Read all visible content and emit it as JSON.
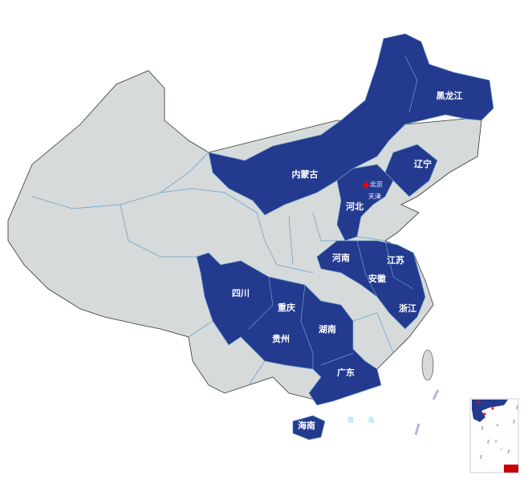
{
  "colors": {
    "highlighted": "#233a8f",
    "default": "#d6dadb",
    "border": "#6fa3c9",
    "outline": "#333333",
    "capital_marker": "#ff0000",
    "sea_label": "#7fd3f0"
  },
  "highlighted_provinces": [
    "黑龙江",
    "内蒙古",
    "辽宁",
    "北京",
    "天津",
    "河北",
    "河南",
    "江苏",
    "安徽",
    "浙江",
    "四川",
    "重庆",
    "贵州",
    "湖南",
    "广东",
    "海南"
  ],
  "labels": {
    "heilongjiang": "黑龙江",
    "neimenggu": "内蒙古",
    "liaoning": "辽宁",
    "beijing": "北京",
    "tianjin": "天津",
    "hebei": "河北",
    "henan": "河南",
    "jiangsu": "江苏",
    "anhui": "安徽",
    "zhejiang": "浙江",
    "sichuan": "四川",
    "chongqing": "重庆",
    "guizhou": "贵州",
    "hunan": "湖南",
    "guangdong": "广东",
    "hainan": "海南"
  },
  "sea": {
    "char1": "南",
    "char2": "海"
  },
  "icons": {
    "capital": "star-icon"
  }
}
